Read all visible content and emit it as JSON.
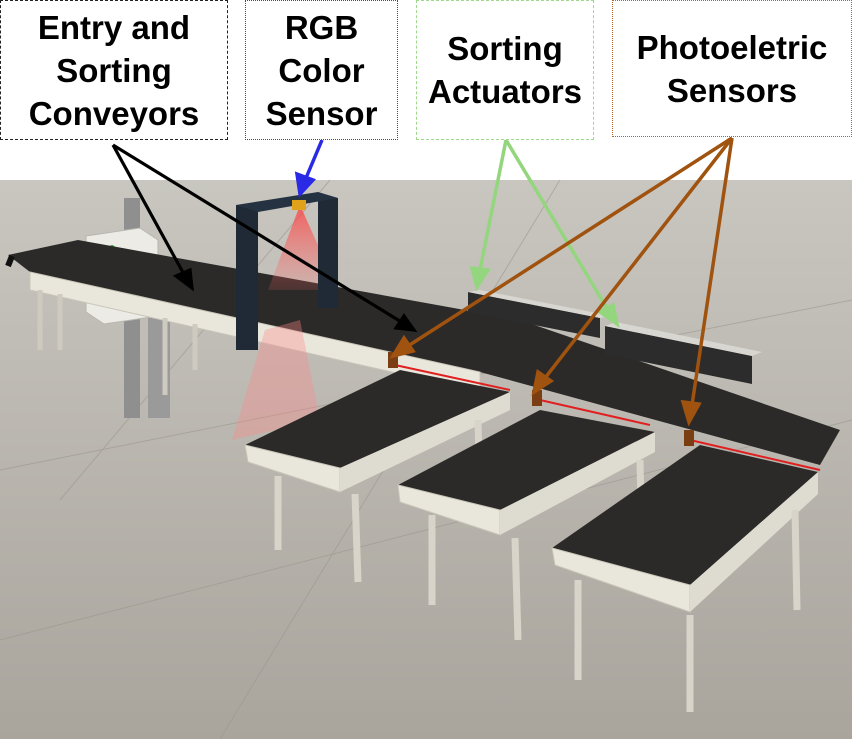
{
  "labels": {
    "entry": "Entry and\nSorting\nConveyors",
    "rgb": "RGB\nColor\nSensor",
    "actuators": "Sorting\nActuators",
    "photo": "Photoeletric\nSensors"
  },
  "colors": {
    "entry_arrow": "#000000",
    "rgb_arrow": "#2a2ae6",
    "actuator_arrow": "#93d67e",
    "photo_arrow": "#a0520f",
    "belt": "#2b2a28",
    "frame": "#e9e6dc",
    "floor": "#b7b3ab",
    "laser": "#e02020"
  }
}
